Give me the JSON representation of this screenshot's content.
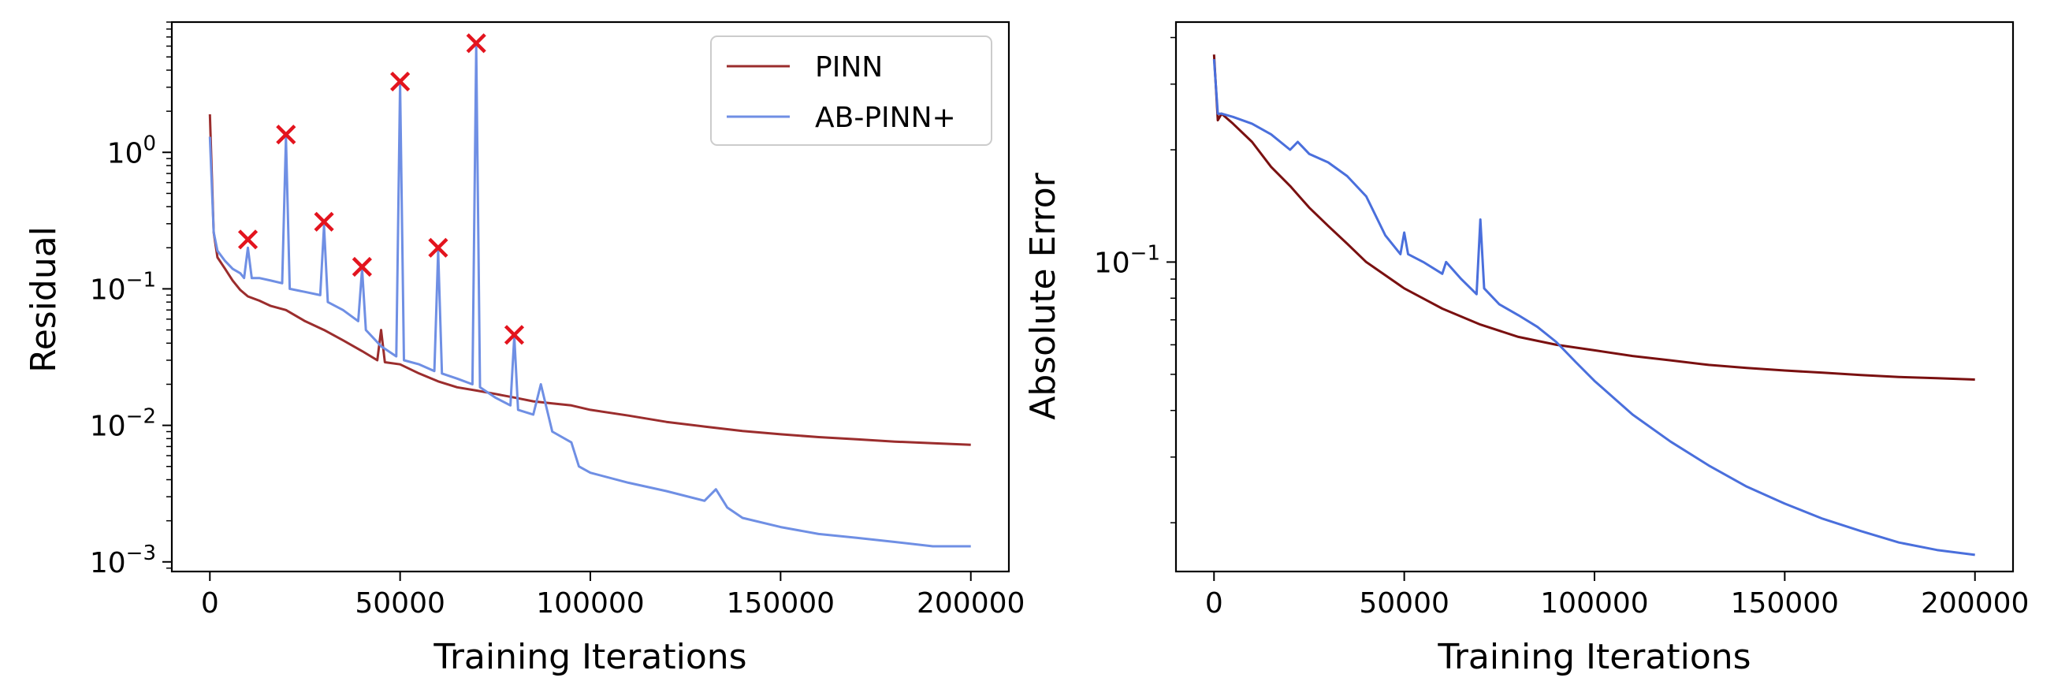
{
  "chart_data": [
    {
      "type": "line",
      "title": "",
      "xlabel": "Training Iterations",
      "ylabel": "Residual",
      "yscale": "log",
      "xlim": [
        -10000,
        210000
      ],
      "ylim": [
        0.00085,
        9.0
      ],
      "grid": false,
      "legend_position": "top-right",
      "xticks": [
        0,
        50000,
        100000,
        150000,
        200000
      ],
      "xtick_labels": [
        "0",
        "50000",
        "100000",
        "150000",
        "200000"
      ],
      "yticks": [
        1,
        0.1,
        0.01,
        0.001
      ],
      "ytick_mantissa": [
        "10",
        "10",
        "10",
        "10"
      ],
      "ytick_exponents": [
        "0",
        "−1",
        "−2",
        "−3"
      ],
      "series": [
        {
          "name": "PINN",
          "color": "#9b2d2d",
          "x": [
            0,
            1000,
            2000,
            4000,
            6000,
            8000,
            10000,
            13000,
            16000,
            20000,
            25000,
            30000,
            35000,
            40000,
            44000,
            45000,
            46000,
            50000,
            55000,
            60000,
            65000,
            70000,
            75000,
            80000,
            85000,
            90000,
            95000,
            100000,
            110000,
            120000,
            130000,
            140000,
            150000,
            160000,
            170000,
            180000,
            190000,
            200000
          ],
          "values": [
            1.9,
            0.26,
            0.17,
            0.14,
            0.115,
            0.098,
            0.088,
            0.082,
            0.075,
            0.07,
            0.058,
            0.05,
            0.042,
            0.035,
            0.03,
            0.05,
            0.029,
            0.028,
            0.024,
            0.021,
            0.019,
            0.018,
            0.017,
            0.016,
            0.015,
            0.0145,
            0.014,
            0.013,
            0.0118,
            0.0106,
            0.0098,
            0.0091,
            0.0086,
            0.0082,
            0.0079,
            0.0076,
            0.0074,
            0.0072
          ]
        },
        {
          "name": "AB-PINN+",
          "color": "#6f8fe4",
          "x": [
            0,
            1000,
            2000,
            4000,
            6000,
            8000,
            9000,
            10000,
            11000,
            13000,
            16000,
            19000,
            20000,
            21000,
            25000,
            29000,
            30000,
            31000,
            35000,
            39000,
            40000,
            41000,
            45000,
            49000,
            50000,
            51000,
            55000,
            59000,
            60000,
            61000,
            65000,
            69000,
            70000,
            71000,
            75000,
            79000,
            80000,
            81000,
            85000,
            87000,
            90000,
            95000,
            97000,
            100000,
            110000,
            120000,
            130000,
            133000,
            136000,
            140000,
            150000,
            160000,
            170000,
            180000,
            190000,
            200000
          ],
          "values": [
            1.3,
            0.26,
            0.19,
            0.16,
            0.14,
            0.13,
            0.12,
            0.2,
            0.12,
            0.12,
            0.115,
            0.11,
            1.28,
            0.1,
            0.095,
            0.09,
            0.29,
            0.08,
            0.07,
            0.058,
            0.14,
            0.05,
            0.038,
            0.032,
            3.2,
            0.03,
            0.028,
            0.025,
            0.19,
            0.024,
            0.022,
            0.02,
            5.9,
            0.019,
            0.016,
            0.014,
            0.045,
            0.013,
            0.012,
            0.02,
            0.009,
            0.0075,
            0.005,
            0.0045,
            0.0038,
            0.0033,
            0.0028,
            0.0034,
            0.0025,
            0.0021,
            0.0018,
            0.0016,
            0.0015,
            0.0014,
            0.0013,
            0.0013
          ]
        }
      ],
      "markers": {
        "name": "spikes",
        "color": "#e3141e",
        "symbol": "x",
        "x": [
          10000,
          20000,
          30000,
          40000,
          50000,
          60000,
          70000,
          80000
        ],
        "values": [
          0.23,
          1.35,
          0.31,
          0.145,
          3.3,
          0.2,
          6.3,
          0.046
        ]
      }
    },
    {
      "type": "line",
      "title": "",
      "xlabel": "Training Iterations",
      "ylabel": "Absolute Error",
      "yscale": "log",
      "xlim": [
        -10000,
        210000
      ],
      "ylim": [
        0.0148,
        0.44
      ],
      "grid": false,
      "legend_position": "none",
      "xticks": [
        0,
        50000,
        100000,
        150000,
        200000
      ],
      "xtick_labels": [
        "0",
        "50000",
        "100000",
        "150000",
        "200000"
      ],
      "yticks": [
        0.1
      ],
      "ytick_mantissa": [
        "10"
      ],
      "ytick_exponents": [
        "−1"
      ],
      "series": [
        {
          "name": "PINN",
          "color": "#7a1010",
          "x": [
            0,
            1000,
            2000,
            5000,
            10000,
            15000,
            20000,
            25000,
            30000,
            35000,
            40000,
            50000,
            60000,
            70000,
            80000,
            90000,
            100000,
            110000,
            120000,
            130000,
            140000,
            150000,
            160000,
            170000,
            180000,
            190000,
            200000
          ],
          "values": [
            0.36,
            0.24,
            0.25,
            0.235,
            0.21,
            0.18,
            0.16,
            0.14,
            0.125,
            0.112,
            0.1,
            0.085,
            0.075,
            0.068,
            0.063,
            0.06,
            0.058,
            0.056,
            0.0545,
            0.053,
            0.052,
            0.0512,
            0.0505,
            0.0498,
            0.0492,
            0.0488,
            0.0484
          ]
        },
        {
          "name": "AB-PINN+",
          "color": "#4a6fdc",
          "x": [
            0,
            1000,
            2000,
            5000,
            10000,
            15000,
            20000,
            22000,
            25000,
            30000,
            35000,
            40000,
            45000,
            49000,
            50000,
            51000,
            55000,
            60000,
            61000,
            65000,
            69000,
            70000,
            71000,
            75000,
            80000,
            85000,
            90000,
            95000,
            100000,
            110000,
            120000,
            130000,
            140000,
            150000,
            160000,
            170000,
            180000,
            190000,
            200000
          ],
          "values": [
            0.35,
            0.25,
            0.25,
            0.245,
            0.235,
            0.22,
            0.2,
            0.21,
            0.195,
            0.185,
            0.17,
            0.15,
            0.118,
            0.105,
            0.12,
            0.105,
            0.1,
            0.093,
            0.1,
            0.09,
            0.082,
            0.13,
            0.085,
            0.077,
            0.072,
            0.067,
            0.061,
            0.054,
            0.048,
            0.039,
            0.033,
            0.0285,
            0.025,
            0.0225,
            0.0205,
            0.019,
            0.0177,
            0.0169,
            0.0164
          ]
        }
      ]
    }
  ]
}
